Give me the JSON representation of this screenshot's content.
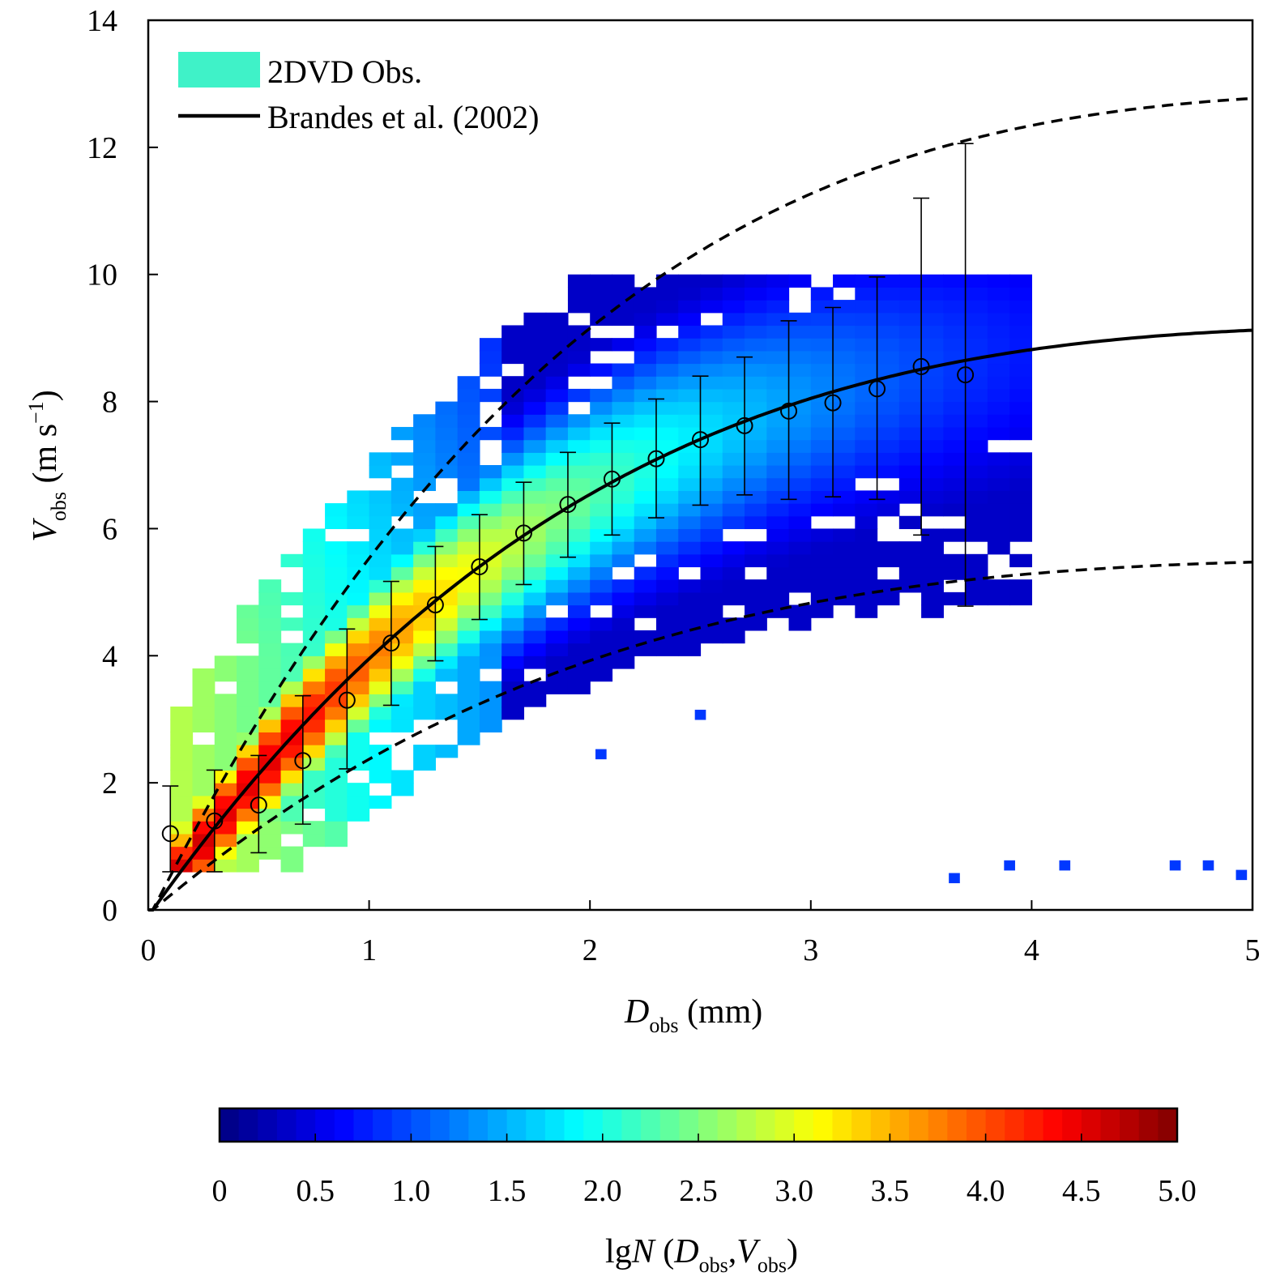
{
  "chart_data": {
    "type": "heatmap",
    "xlabel": {
      "main": "D",
      "sub": "obs",
      "unit": " (mm)"
    },
    "ylabel": {
      "main": "V",
      "sub": "obs",
      "unit": " (m s",
      "sup": "−1",
      "close": ")"
    },
    "xlim": [
      0,
      5
    ],
    "ylim": [
      0,
      14
    ],
    "xticks": [
      "0",
      "1",
      "2",
      "3",
      "4",
      "5"
    ],
    "yticks": [
      "0",
      "2",
      "4",
      "6",
      "8",
      "10",
      "12",
      "14"
    ],
    "legend": {
      "position": "top-left",
      "entries": [
        {
          "label": "2DVD Obs.",
          "kind": "patch",
          "color": "#3ff2c8",
          "text_color": "#000000"
        },
        {
          "label": "Brandes et al. (2002)",
          "kind": "line",
          "color": "#000000",
          "text_color": "#1b3ff0"
        }
      ]
    },
    "colorbar": {
      "title": {
        "pre": "lg",
        "italic": "N",
        "open": " (",
        "d": "D",
        "dsub": "obs",
        "comma": ",",
        "v": "V",
        "vsub": "obs",
        "close": ")"
      },
      "range": [
        0,
        5
      ],
      "ticks": [
        "0",
        "0.5",
        "1.0",
        "1.5",
        "2.0",
        "2.5",
        "3.0",
        "3.5",
        "4.0",
        "4.5",
        "5.0"
      ],
      "colormap": "jet"
    },
    "bin_means": {
      "x": [
        0.1,
        0.3,
        0.5,
        0.7,
        0.9,
        1.1,
        1.3,
        1.5,
        1.7,
        1.9,
        2.1,
        2.3,
        2.5,
        2.7,
        2.9,
        3.1,
        3.3,
        3.5,
        3.7
      ],
      "mean": [
        1.2,
        1.4,
        1.65,
        2.35,
        3.3,
        4.2,
        4.8,
        5.4,
        5.93,
        6.38,
        6.78,
        7.1,
        7.4,
        7.62,
        7.85,
        7.98,
        8.2,
        8.55,
        8.42
      ],
      "lower": [
        0.6,
        0.6,
        0.9,
        1.35,
        2.22,
        3.22,
        3.92,
        4.57,
        5.12,
        5.55,
        5.9,
        6.17,
        6.37,
        6.53,
        6.46,
        6.5,
        6.46,
        5.9,
        4.78
      ],
      "upper": [
        1.95,
        2.2,
        2.43,
        3.37,
        4.42,
        5.17,
        5.72,
        6.22,
        6.73,
        7.2,
        7.66,
        8.04,
        8.4,
        8.7,
        9.27,
        9.48,
        9.96,
        11.2,
        12.06
      ]
    },
    "brandes_curve": {
      "label": "Brandes et al. (2002)",
      "coefficients": [
        -0.1021,
        4.932,
        -0.9551,
        0.07934,
        -0.002362
      ]
    },
    "upper_dashed": {
      "factor": 1.4
    },
    "lower_dashed": {
      "factor": 0.6
    },
    "scatter_outliers": [
      {
        "x": 2.5,
        "y": 3.07
      },
      {
        "x": 2.05,
        "y": 2.45
      },
      {
        "x": 3.65,
        "y": 0.5
      },
      {
        "x": 3.9,
        "y": 0.7
      },
      {
        "x": 4.15,
        "y": 0.7
      },
      {
        "x": 4.65,
        "y": 0.7
      },
      {
        "x": 4.8,
        "y": 0.7
      },
      {
        "x": 4.95,
        "y": 0.55
      }
    ]
  }
}
